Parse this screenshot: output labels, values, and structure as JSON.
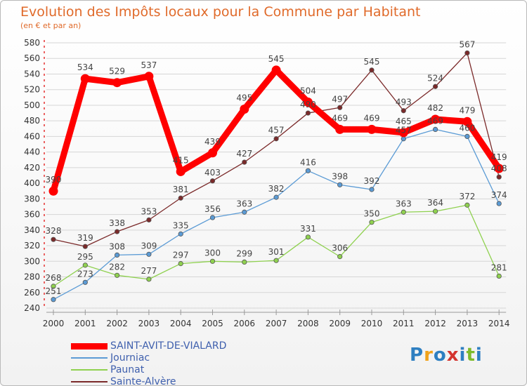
{
  "chart_data": {
    "type": "line",
    "title": "Evolution des Impôts locaux pour la Commune par Habitant",
    "subtitle": "(en € et par an)",
    "x": [
      "2000",
      "2001",
      "2002",
      "2003",
      "2004",
      "2005",
      "2006",
      "2007",
      "2008",
      "2009",
      "2010",
      "2011",
      "2012",
      "2013",
      "2014"
    ],
    "ylim": [
      240,
      580
    ],
    "yticks": [
      240,
      260,
      280,
      300,
      320,
      340,
      360,
      380,
      400,
      420,
      440,
      460,
      480,
      500,
      520,
      540,
      560,
      580
    ],
    "grid": "horizontal",
    "legend_position": "bottom-left",
    "series": [
      {
        "name": "SAINT-AVIT-DE-VIALARD",
        "color": "#ff0000",
        "values": [
          390,
          534,
          529,
          537,
          415,
          439,
          495,
          545,
          504,
          469,
          469,
          465,
          482,
          479,
          419
        ]
      },
      {
        "name": "Journiac",
        "color": "#5b9bd5",
        "values": [
          251,
          273,
          308,
          309,
          335,
          356,
          363,
          382,
          416,
          398,
          392,
          457,
          469,
          460,
          374
        ]
      },
      {
        "name": "Paunat",
        "color": "#8fd14f",
        "values": [
          268,
          295,
          282,
          277,
          297,
          300,
          299,
          301,
          331,
          306,
          350,
          363,
          364,
          372,
          281
        ]
      },
      {
        "name": "Sainte-Alvère",
        "color": "#7b2a2a",
        "values": [
          328,
          319,
          338,
          353,
          381,
          403,
          427,
          457,
          490,
          497,
          545,
          493,
          524,
          567,
          408
        ]
      }
    ]
  },
  "branding": {
    "logo_text": "Proxiti"
  }
}
